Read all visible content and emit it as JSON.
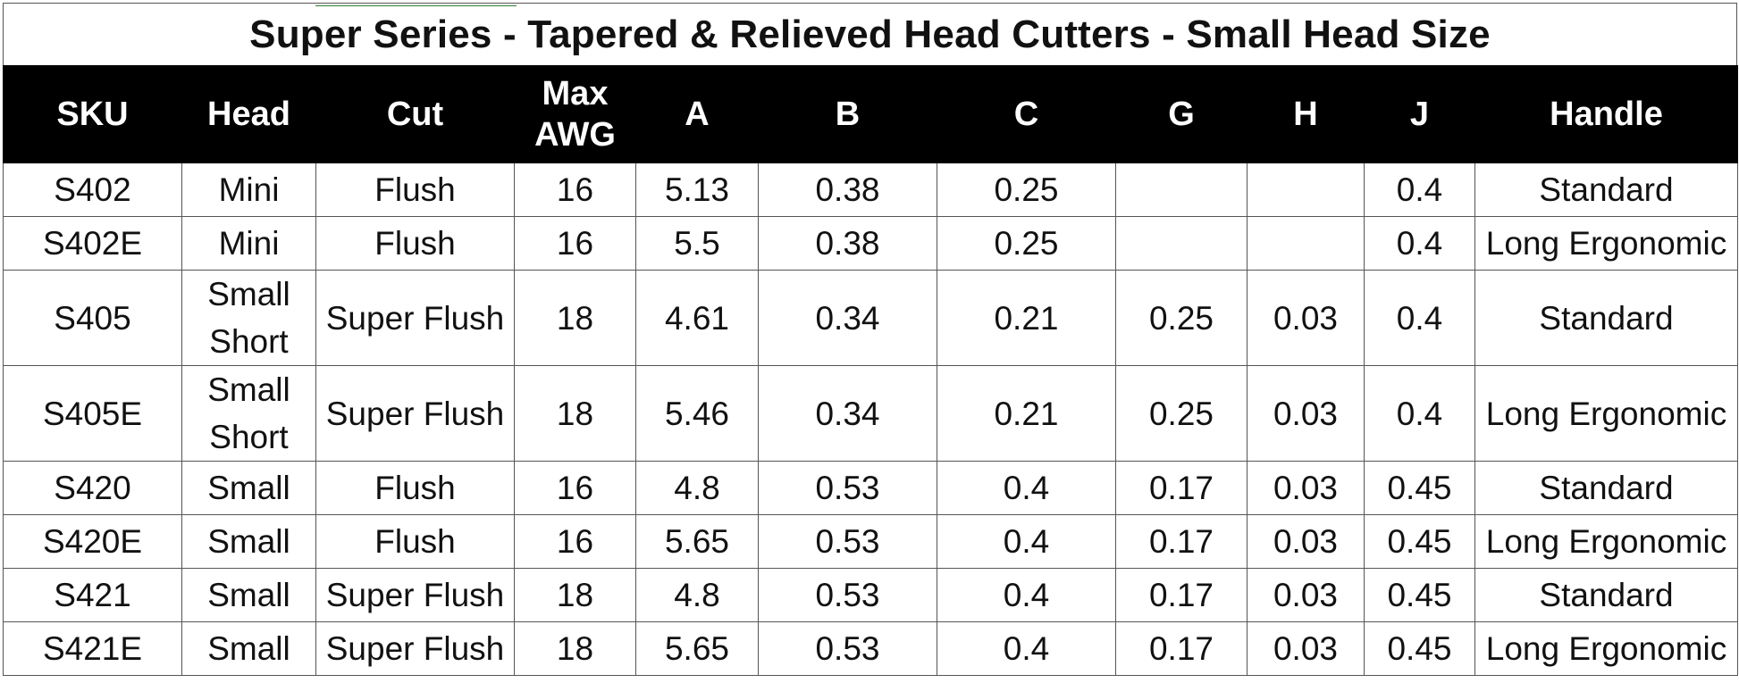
{
  "title": "Super Series - Tapered & Relieved Head Cutters - Small Head Size",
  "columns": {
    "sku": "SKU",
    "head": "Head",
    "cut": "Cut",
    "max_awg_1": "Max",
    "max_awg_2": "AWG",
    "a": "A",
    "b": "B",
    "c": "C",
    "g": "G",
    "h": "H",
    "j": "J",
    "handle": "Handle"
  },
  "rows": [
    {
      "sku": "S402",
      "head1": "Mini",
      "head2": "",
      "cut": "Flush",
      "awg": "16",
      "a": "5.13",
      "b": "0.38",
      "c": "0.25",
      "g": "",
      "h": "",
      "j": "0.4",
      "handle": "Standard"
    },
    {
      "sku": "S402E",
      "head1": "Mini",
      "head2": "",
      "cut": "Flush",
      "awg": "16",
      "a": "5.5",
      "b": "0.38",
      "c": "0.25",
      "g": "",
      "h": "",
      "j": "0.4",
      "handle": "Long Ergonomic"
    },
    {
      "sku": "S405",
      "head1": "Small",
      "head2": "Short",
      "cut": "Super Flush",
      "awg": "18",
      "a": "4.61",
      "b": "0.34",
      "c": "0.21",
      "g": "0.25",
      "h": "0.03",
      "j": "0.4",
      "handle": "Standard"
    },
    {
      "sku": "S405E",
      "head1": "Small",
      "head2": "Short",
      "cut": "Super Flush",
      "awg": "18",
      "a": "5.46",
      "b": "0.34",
      "c": "0.21",
      "g": "0.25",
      "h": "0.03",
      "j": "0.4",
      "handle": "Long Ergonomic"
    },
    {
      "sku": "S420",
      "head1": "Small",
      "head2": "",
      "cut": "Flush",
      "awg": "16",
      "a": "4.8",
      "b": "0.53",
      "c": "0.4",
      "g": "0.17",
      "h": "0.03",
      "j": "0.45",
      "handle": "Standard"
    },
    {
      "sku": "S420E",
      "head1": "Small",
      "head2": "",
      "cut": "Flush",
      "awg": "16",
      "a": "5.65",
      "b": "0.53",
      "c": "0.4",
      "g": "0.17",
      "h": "0.03",
      "j": "0.45",
      "handle": "Long Ergonomic"
    },
    {
      "sku": "S421",
      "head1": "Small",
      "head2": "",
      "cut": "Super Flush",
      "awg": "18",
      "a": "4.8",
      "b": "0.53",
      "c": "0.4",
      "g": "0.17",
      "h": "0.03",
      "j": "0.45",
      "handle": "Standard"
    },
    {
      "sku": "S421E",
      "head1": "Small",
      "head2": "",
      "cut": "Super Flush",
      "awg": "18",
      "a": "5.65",
      "b": "0.53",
      "c": "0.4",
      "g": "0.17",
      "h": "0.03",
      "j": "0.45",
      "handle": "Long Ergonomic"
    }
  ],
  "colors": {
    "header_bg": "#000000",
    "header_text": "#ffffff",
    "grid": "#555555"
  }
}
